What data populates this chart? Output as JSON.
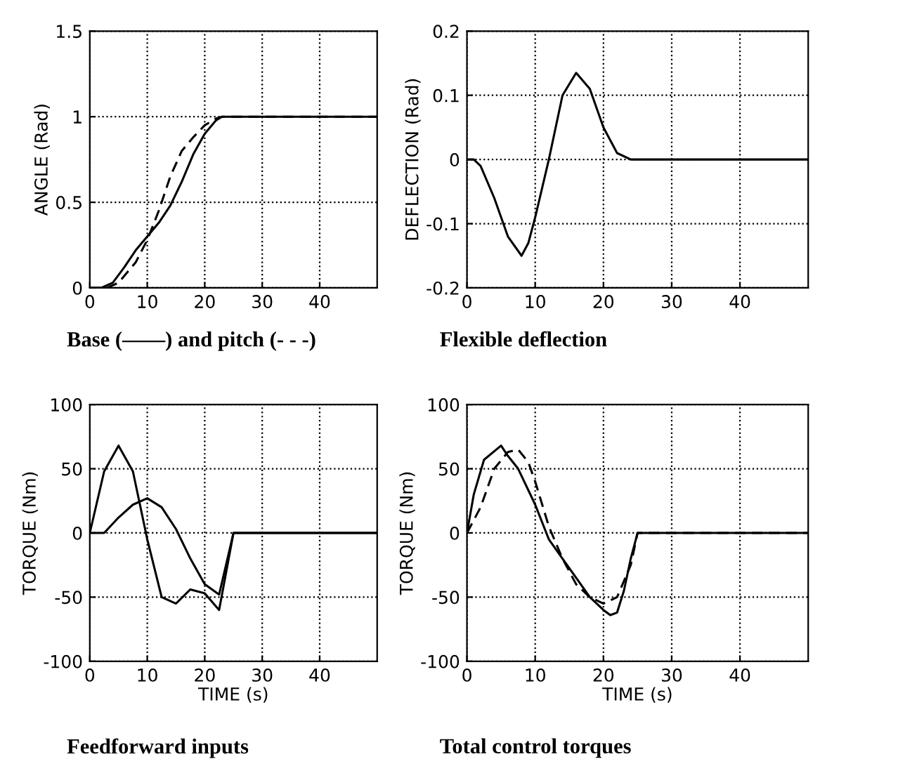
{
  "chart_data": [
    {
      "type": "line",
      "title": "Base (——) and pitch (- - -)",
      "ylabel": "ANGLE (Rad)",
      "xlim": [
        0,
        50
      ],
      "xticks": [
        0,
        10,
        20,
        30,
        40
      ],
      "ylim": [
        0,
        1.5
      ],
      "yticks": [
        0,
        0.5,
        1,
        1.5
      ],
      "grid": true,
      "series": [
        {
          "color": "#000000",
          "line_style": "solid",
          "x": [
            0,
            2,
            4,
            6,
            8,
            10,
            12,
            14,
            16,
            18,
            20,
            22,
            23,
            50
          ],
          "values": [
            0,
            0,
            0.03,
            0.12,
            0.22,
            0.3,
            0.38,
            0.48,
            0.62,
            0.78,
            0.9,
            0.98,
            1.0,
            1.0
          ]
        },
        {
          "color": "#000000",
          "line_style": "dashed",
          "x": [
            0,
            3,
            5,
            8,
            10,
            12,
            14,
            16,
            18,
            20,
            22,
            23,
            50
          ],
          "values": [
            0,
            0,
            0.03,
            0.15,
            0.28,
            0.45,
            0.65,
            0.8,
            0.88,
            0.95,
            0.99,
            1.0,
            1.0
          ]
        }
      ]
    },
    {
      "type": "line",
      "title": "Flexible deflection",
      "ylabel": "DEFLECTION (Rad)",
      "xlim": [
        0,
        50
      ],
      "xticks": [
        0,
        10,
        20,
        30,
        40
      ],
      "ylim": [
        -0.2,
        0.2
      ],
      "yticks": [
        -0.2,
        -0.1,
        0,
        0.1,
        0.2
      ],
      "grid": true,
      "series": [
        {
          "color": "#000000",
          "line_style": "solid",
          "x": [
            0,
            1,
            2,
            4,
            6,
            8,
            9,
            10,
            12,
            14,
            16,
            18,
            20,
            22,
            24,
            50
          ],
          "values": [
            0,
            0,
            -0.01,
            -0.06,
            -0.12,
            -0.15,
            -0.13,
            -0.09,
            0.0,
            0.1,
            0.135,
            0.11,
            0.05,
            0.01,
            0,
            0
          ]
        }
      ]
    },
    {
      "type": "line",
      "title": "Feedforward inputs",
      "xlabel": "TIME (s)",
      "ylabel": "TORQUE (Nm)",
      "xlim": [
        0,
        50
      ],
      "xticks": [
        0,
        10,
        20,
        30,
        40
      ],
      "ylim": [
        -100,
        100
      ],
      "yticks": [
        -100,
        -50,
        0,
        50,
        100
      ],
      "grid": true,
      "series": [
        {
          "color": "#000000",
          "line_style": "solid",
          "x": [
            0,
            2.5,
            5,
            7.5,
            10,
            12.5,
            15,
            17.5,
            20,
            22.5,
            25,
            50
          ],
          "values": [
            0,
            48,
            68,
            48,
            -5,
            -50,
            -55,
            -44,
            -47,
            -60,
            0,
            0
          ]
        },
        {
          "color": "#000000",
          "line_style": "solid",
          "x": [
            0,
            2.5,
            5,
            7.5,
            10,
            12.5,
            15,
            17.5,
            20,
            22.5,
            25,
            50
          ],
          "values": [
            0,
            0,
            12,
            22,
            27,
            20,
            3,
            -20,
            -40,
            -48,
            0,
            0
          ]
        }
      ]
    },
    {
      "type": "line",
      "title": "Total control torques",
      "xlabel": "TIME (s)",
      "ylabel": "TORQUE (Nm)",
      "xlim": [
        0,
        50
      ],
      "xticks": [
        0,
        10,
        20,
        30,
        40
      ],
      "ylim": [
        -100,
        100
      ],
      "yticks": [
        -100,
        -50,
        0,
        50,
        100
      ],
      "grid": true,
      "series": [
        {
          "color": "#000000",
          "line_style": "solid",
          "x": [
            0,
            1,
            2.5,
            5,
            6,
            7.5,
            10,
            12,
            14,
            16,
            18,
            20,
            21,
            22,
            23,
            24,
            25,
            50
          ],
          "values": [
            0,
            30,
            57,
            68,
            60,
            50,
            22,
            -5,
            -20,
            -35,
            -50,
            -60,
            -64,
            -62,
            -45,
            -20,
            0,
            0
          ]
        },
        {
          "color": "#000000",
          "line_style": "dashed",
          "x": [
            0,
            2,
            4,
            6,
            7.5,
            9,
            10,
            12,
            14,
            16,
            18,
            20,
            22,
            24,
            25,
            50
          ],
          "values": [
            0,
            20,
            50,
            63,
            65,
            55,
            40,
            5,
            -20,
            -40,
            -50,
            -55,
            -50,
            -25,
            0,
            0
          ]
        }
      ]
    }
  ]
}
